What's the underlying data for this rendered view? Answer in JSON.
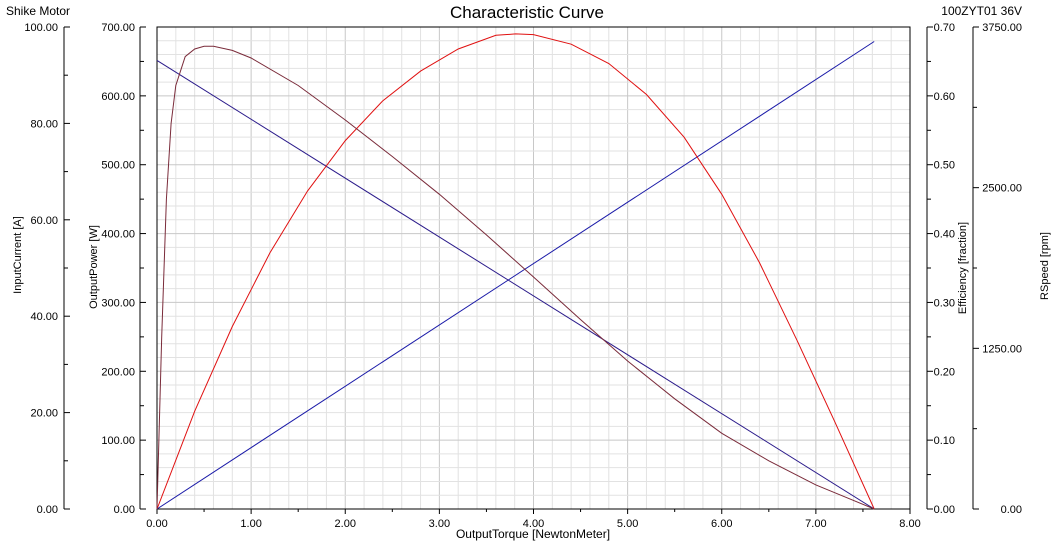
{
  "header": {
    "brand": "Shike Motor",
    "title": "Characteristic Curve",
    "model": "100ZYT01 36V"
  },
  "chart_data": {
    "type": "line",
    "title": "Characteristic Curve",
    "xlabel": "OutputTorque [NewtonMeter]",
    "xlim": [
      0,
      8
    ],
    "x_ticks": [
      "0.00",
      "1.00",
      "2.00",
      "3.00",
      "4.00",
      "5.00",
      "6.00",
      "7.00",
      "8.00"
    ],
    "grid": true,
    "axes": [
      {
        "id": "current",
        "label": "InputCurrent [A]",
        "side": "left-outer",
        "ylim": [
          0,
          100
        ],
        "ticks": [
          "0.00",
          "20.00",
          "40.00",
          "60.00",
          "80.00",
          "100.00"
        ]
      },
      {
        "id": "power",
        "label": "OutputPower [W]",
        "side": "left-inner",
        "ylim": [
          0,
          700
        ],
        "ticks": [
          "0.00",
          "100.00",
          "200.00",
          "300.00",
          "400.00",
          "500.00",
          "600.00",
          "700.00"
        ]
      },
      {
        "id": "efficiency",
        "label": "Efficiency [fraction]",
        "side": "right-inner",
        "ylim": [
          0,
          0.7
        ],
        "ticks": [
          "0.00",
          "0.10",
          "0.20",
          "0.30",
          "0.40",
          "0.50",
          "0.60",
          "0.70"
        ]
      },
      {
        "id": "speed",
        "label": "RSpeed [rpm]",
        "side": "right-outer",
        "ylim": [
          0,
          3750
        ],
        "ticks": [
          "0.00",
          "1250.00",
          "2500.00",
          "3750.00"
        ]
      }
    ],
    "series": [
      {
        "axis": "current",
        "color": "#1a1aa8",
        "x": [
          0,
          7.62
        ],
        "y": [
          0,
          97
        ]
      },
      {
        "axis": "speed",
        "color": "#2a1a8a",
        "x": [
          0,
          7.62
        ],
        "y": [
          3490,
          0
        ]
      },
      {
        "axis": "power",
        "color": "#e01010",
        "x": [
          0,
          0.4,
          0.8,
          1.2,
          1.6,
          2.0,
          2.4,
          2.8,
          3.2,
          3.6,
          3.81,
          4.0,
          4.4,
          4.8,
          5.2,
          5.6,
          6.0,
          6.4,
          6.8,
          7.2,
          7.62
        ],
        "y": [
          0,
          142,
          265,
          372,
          462,
          535,
          593,
          636,
          668,
          688,
          690,
          689,
          675,
          647,
          602,
          540,
          457,
          358,
          245,
          127,
          0
        ]
      },
      {
        "axis": "efficiency",
        "color": "#7a2b3a",
        "x": [
          0,
          0.05,
          0.1,
          0.15,
          0.2,
          0.3,
          0.4,
          0.5,
          0.6,
          0.8,
          1.0,
          1.5,
          2.0,
          2.5,
          3.0,
          3.5,
          4.0,
          4.5,
          5.0,
          5.5,
          6.0,
          6.5,
          7.0,
          7.3,
          7.62
        ],
        "y": [
          0,
          0.25,
          0.45,
          0.56,
          0.615,
          0.657,
          0.668,
          0.672,
          0.672,
          0.666,
          0.655,
          0.615,
          0.565,
          0.512,
          0.457,
          0.398,
          0.337,
          0.275,
          0.215,
          0.16,
          0.11,
          0.07,
          0.035,
          0.018,
          0
        ]
      }
    ]
  }
}
